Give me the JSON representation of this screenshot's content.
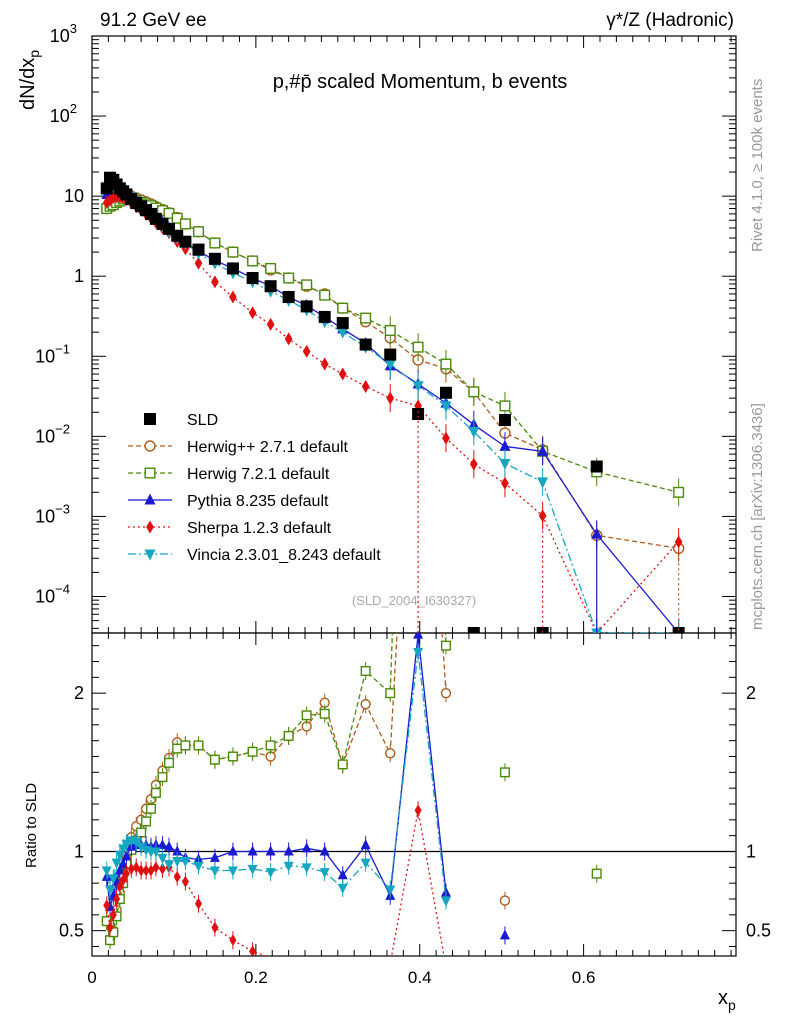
{
  "header": {
    "left": "91.2 GeV ee",
    "right": "γ*/Z (Hadronic)"
  },
  "side_text": {
    "rivet": "Rivet 4.1.0, ≥ 100k events",
    "source": "mcplots.cern.ch [arXiv:1306.3436]"
  },
  "chart_data": {
    "type": "scatter",
    "title": "p,#p̄ scaled Momentum, b events",
    "analysis_tag": "(SLD_2004_I630327)",
    "xlabel": "x",
    "xlabel_sub": "p",
    "ylabel": "dN/dx",
    "ylabel_sub": "p",
    "ratio_ylabel": "Ratio to SLD",
    "xlim": [
      0,
      0.786
    ],
    "ylim": [
      3.5e-05,
      1000
    ],
    "yscale": "log",
    "ratio_ylim": [
      0.34,
      2.38
    ],
    "x_ticks": [
      "0",
      "0.2",
      "0.4",
      "0.6"
    ],
    "y_ticks": [
      {
        "base": "10",
        "exp": "3"
      },
      {
        "base": "10",
        "exp": "2"
      },
      {
        "base": "10",
        "exp": ""
      },
      {
        "base": "1",
        "exp": ""
      },
      {
        "base": "10",
        "exp": "−1"
      },
      {
        "base": "10",
        "exp": "−2"
      },
      {
        "base": "10",
        "exp": "−3"
      },
      {
        "base": "10",
        "exp": "−4"
      }
    ],
    "ratio_ticks": [
      "0.5",
      "1",
      "2"
    ],
    "legend_position": "bottom-left",
    "x": [
      0.018,
      0.022,
      0.026,
      0.03,
      0.034,
      0.038,
      0.042,
      0.048,
      0.054,
      0.06,
      0.066,
      0.072,
      0.078,
      0.086,
      0.094,
      0.104,
      0.114,
      0.13,
      0.15,
      0.172,
      0.196,
      0.218,
      0.24,
      0.262,
      0.284,
      0.306,
      0.334,
      0.364,
      0.398,
      0.432,
      0.466,
      0.504,
      0.55,
      0.616,
      0.716
    ],
    "series": [
      {
        "name": "SLD",
        "color": "#000000",
        "marker": "square-filled",
        "dash": "none",
        "values": [
          12.5,
          17,
          16,
          14,
          12.5,
          11.5,
          10.5,
          9.2,
          8.2,
          7.5,
          6.7,
          6.0,
          5.2,
          4.5,
          3.9,
          3.2,
          2.7,
          2.15,
          1.65,
          1.25,
          0.95,
          0.75,
          0.55,
          0.42,
          0.31,
          0.26,
          0.14,
          0.105,
          0.019,
          0.035,
          3.5e-05,
          0.016,
          3.5e-05,
          0.0042,
          3.5e-05
        ]
      },
      {
        "name": "Herwig++ 2.7.1 default",
        "color": "#b05a1a",
        "marker": "circle-open",
        "dash": "5,3",
        "values": [
          7,
          7.5,
          8,
          8.8,
          9.3,
          9.8,
          10.2,
          10,
          9.5,
          9,
          8.5,
          8.0,
          7.4,
          6.8,
          6.2,
          5.4,
          4.5,
          3.6,
          2.6,
          2.0,
          1.55,
          1.2,
          0.95,
          0.75,
          0.6,
          0.4,
          0.27,
          0.17,
          0.09,
          0.07,
          0.036,
          0.011,
          0.0068,
          0.00058,
          0.0004
        ]
      },
      {
        "name": "Herwig 7.2.1 default",
        "color": "#4a8a0a",
        "marker": "square-open",
        "dash": "5,3",
        "values": [
          7,
          7.5,
          7.8,
          8.3,
          8.7,
          9.2,
          9.7,
          9.3,
          8.8,
          8.4,
          8.0,
          7.6,
          7.1,
          6.6,
          6.1,
          5.3,
          4.5,
          3.6,
          2.6,
          2.0,
          1.55,
          1.25,
          0.95,
          0.78,
          0.58,
          0.4,
          0.3,
          0.21,
          0.13,
          0.08,
          0.036,
          0.024,
          0.0065,
          0.0036,
          0.002
        ]
      },
      {
        "name": "Pythia 8.235 default",
        "color": "#1a1ad0",
        "marker": "triangle-up",
        "dash": "none",
        "values": [
          10.5,
          11,
          11.5,
          11.3,
          11,
          10.6,
          10.2,
          9.5,
          8.6,
          7.8,
          7.0,
          6.2,
          5.4,
          4.7,
          4.0,
          3.2,
          2.6,
          2.05,
          1.58,
          1.25,
          0.95,
          0.75,
          0.55,
          0.43,
          0.31,
          0.22,
          0.145,
          0.076,
          0.045,
          0.026,
          0.014,
          0.0075,
          0.0065,
          0.0006,
          3.5e-05
        ]
      },
      {
        "name": "Sherpa 1.2.3 default",
        "color": "#e01010",
        "marker": "diamond",
        "dash": "2,3",
        "values": [
          8.3,
          8.9,
          9.6,
          9.8,
          9.7,
          9.4,
          9.0,
          8.2,
          7.4,
          6.6,
          5.9,
          5.3,
          4.7,
          4.0,
          3.5,
          2.7,
          2.2,
          1.45,
          0.85,
          0.55,
          0.35,
          0.25,
          0.165,
          0.115,
          0.08,
          0.06,
          0.042,
          0.03,
          0.024,
          0.0095,
          0.0045,
          0.0026,
          0.00102,
          3.5e-05,
          0.00048
        ]
      },
      {
        "name": "Vincia 2.3.01_8.243 default",
        "color": "#16a6c2",
        "marker": "triangle-down",
        "dash": "8,3,2,3",
        "values": [
          12.5,
          13,
          13.3,
          13,
          12.3,
          11.7,
          11.0,
          9.8,
          8.7,
          7.7,
          6.8,
          6.0,
          5.2,
          4.3,
          3.6,
          3.0,
          2.55,
          1.95,
          1.45,
          1.1,
          0.85,
          0.65,
          0.5,
          0.38,
          0.27,
          0.2,
          0.13,
          0.08,
          0.043,
          0.024,
          0.0115,
          0.0046,
          0.0027,
          3.5e-05,
          3.5e-05
        ]
      }
    ],
    "ratio_series": [
      {
        "name": "Herwig++ 2.7.1 default",
        "values": [
          0.56,
          0.44,
          0.5,
          0.63,
          0.74,
          0.85,
          0.97,
          1.09,
          1.16,
          1.2,
          1.27,
          1.33,
          1.42,
          1.51,
          1.59,
          1.69,
          1.67,
          1.67,
          1.58,
          1.6,
          1.63,
          1.6,
          1.73,
          1.79,
          1.94,
          1.55,
          1.93,
          1.62,
          4.7,
          2.0,
          null,
          0.69,
          null,
          0.14,
          null
        ]
      },
      {
        "name": "Herwig 7.2.1 default",
        "values": [
          0.56,
          0.44,
          0.49,
          0.59,
          0.7,
          0.8,
          0.92,
          1.01,
          1.07,
          1.12,
          1.19,
          1.27,
          1.37,
          1.47,
          1.56,
          1.65,
          1.67,
          1.67,
          1.58,
          1.6,
          1.63,
          1.67,
          1.73,
          1.86,
          1.87,
          1.55,
          2.14,
          2.0,
          6.8,
          2.3,
          null,
          1.5,
          null,
          0.86,
          null
        ]
      },
      {
        "name": "Pythia 8.235 default",
        "values": [
          0.84,
          0.65,
          0.72,
          0.81,
          0.88,
          0.92,
          0.97,
          1.03,
          1.05,
          1.04,
          1.04,
          1.03,
          1.04,
          1.04,
          1.03,
          1.0,
          0.96,
          0.95,
          0.96,
          1.0,
          1.0,
          1.0,
          1.0,
          1.02,
          1.0,
          0.85,
          1.04,
          0.72,
          2.37,
          0.74,
          null,
          0.47,
          null,
          0.14,
          null
        ]
      },
      {
        "name": "Sherpa 1.2.3 default",
        "values": [
          0.66,
          0.52,
          0.6,
          0.7,
          0.78,
          0.82,
          0.86,
          0.89,
          0.9,
          0.88,
          0.88,
          0.88,
          0.9,
          0.89,
          0.9,
          0.84,
          0.81,
          0.67,
          0.52,
          0.44,
          0.37,
          0.33,
          0.3,
          0.27,
          0.26,
          0.23,
          0.3,
          0.29,
          1.26,
          0.27,
          null,
          0.16,
          null,
          null,
          null
        ]
      },
      {
        "name": "Vincia 2.3.01_8.243 default",
        "values": [
          0.88,
          0.76,
          0.83,
          0.93,
          0.98,
          1.02,
          1.05,
          1.07,
          1.06,
          1.03,
          1.01,
          1.0,
          1.0,
          0.96,
          0.92,
          0.94,
          0.94,
          0.91,
          0.88,
          0.88,
          0.89,
          0.87,
          0.91,
          0.9,
          0.87,
          0.77,
          0.93,
          0.76,
          2.26,
          0.69,
          null,
          0.29,
          null,
          null,
          null
        ]
      }
    ]
  }
}
